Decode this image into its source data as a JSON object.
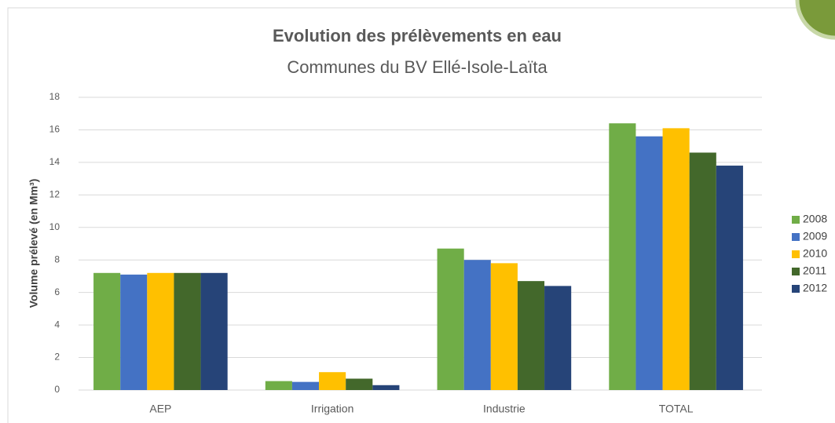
{
  "chart_data": {
    "type": "bar",
    "title": "Evolution des prélèvements en eau",
    "subtitle": "Communes du BV Ellé-Isole-Laïta",
    "y_label": "Volume prélevé (en Mm³)",
    "categories": [
      "AEP",
      "Irrigation",
      "Industrie",
      "TOTAL"
    ],
    "series": [
      {
        "name": "2008",
        "color": "#70ad47",
        "values": [
          7.2,
          0.55,
          8.7,
          16.4
        ]
      },
      {
        "name": "2009",
        "color": "#4472c4",
        "values": [
          7.1,
          0.5,
          8.0,
          15.6
        ]
      },
      {
        "name": "2010",
        "color": "#ffc000",
        "values": [
          7.2,
          1.1,
          7.8,
          16.1
        ]
      },
      {
        "name": "2011",
        "color": "#43682b",
        "values": [
          7.2,
          0.7,
          6.7,
          14.6
        ]
      },
      {
        "name": "2012",
        "color": "#264478",
        "values": [
          7.2,
          0.3,
          6.4,
          13.8
        ]
      }
    ],
    "ylim": [
      0,
      18
    ],
    "yticks": [
      0,
      2,
      4,
      6,
      8,
      10,
      12,
      14,
      16,
      18
    ],
    "grid": true,
    "legend": "right"
  }
}
